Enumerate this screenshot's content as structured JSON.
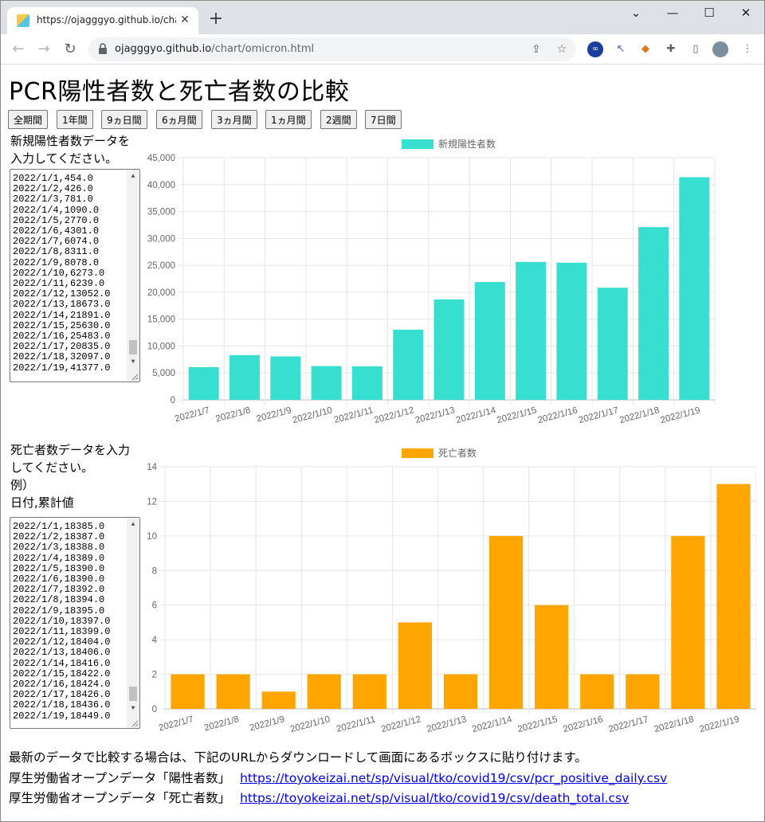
{
  "browser": {
    "tab_title": "https://ojagggyo.github.io/chart/",
    "new_tab_label": "+",
    "url_host": "ojagggyo.github.io",
    "url_path": "/chart/omicron.html",
    "controls": {
      "minimize": "—",
      "maximize": "☐",
      "close": "✕",
      "tabsearch": "⌄"
    }
  },
  "page": {
    "title": "PCR陽性者数と死亡者数の比較",
    "range_buttons": [
      "全期間",
      "1年間",
      "9ヵ日間",
      "6ヵ月間",
      "3ヵ月間",
      "1ヵ月間",
      "2週間",
      "7日間"
    ],
    "positive_label": [
      "新規陽性者数データを",
      "入力してください。"
    ],
    "positive_textarea_lines": [
      "2022/1/1,454.0",
      "2022/1/2,426.0",
      "2022/1/3,781.0",
      "2022/1/4,1090.0",
      "2022/1/5,2770.0",
      "2022/1/6,4301.0",
      "2022/1/7,6074.0",
      "2022/1/8,8311.0",
      "2022/1/9,8078.0",
      "2022/1/10,6273.0",
      "2022/1/11,6239.0",
      "2022/1/12,13052.0",
      "2022/1/13,18673.0",
      "2022/1/14,21891.0",
      "2022/1/15,25630.0",
      "2022/1/16,25483.0",
      "2022/1/17,20835.0",
      "2022/1/18,32097.0",
      "2022/1/19,41377.0"
    ],
    "death_label": [
      "死亡者数データを入力",
      "してください。",
      "例）",
      "日付,累計値"
    ],
    "death_textarea_lines": [
      "2022/1/1,18385.0",
      "2022/1/2,18387.0",
      "2022/1/3,18388.0",
      "2022/1/4,18389.0",
      "2022/1/5,18390.0",
      "2022/1/6,18390.0",
      "2022/1/7,18392.0",
      "2022/1/8,18394.0",
      "2022/1/9,18395.0",
      "2022/1/10,18397.0",
      "2022/1/11,18399.0",
      "2022/1/12,18404.0",
      "2022/1/13,18406.0",
      "2022/1/14,18416.0",
      "2022/1/15,18422.0",
      "2022/1/16,18424.0",
      "2022/1/17,18426.0",
      "2022/1/18,18436.0",
      "2022/1/19,18449.0"
    ],
    "footer": {
      "note": "最新のデータで比較する場合は、下記のURLからダウンロードして画面にあるボックスに貼り付けます。",
      "positive_source_label": "厚生労働省オープンデータ「陽性者数」",
      "positive_source_url": "https://toyokeizai.net/sp/visual/tko/covid19/csv/pcr_positive_daily.csv",
      "death_source_label": "厚生労働省オープンデータ「死亡者数」",
      "death_source_url": "https://toyokeizai.net/sp/visual/tko/covid19/csv/death_total.csv"
    }
  },
  "chart_data": [
    {
      "type": "bar",
      "categories": [
        "2022/1/7",
        "2022/1/8",
        "2022/1/9",
        "2022/1/10",
        "2022/1/11",
        "2022/1/12",
        "2022/1/13",
        "2022/1/14",
        "2022/1/15",
        "2022/1/16",
        "2022/1/17",
        "2022/1/18",
        "2022/1/19"
      ],
      "series": [
        {
          "name": "新規陽性者数",
          "values": [
            6074,
            8311,
            8078,
            6273,
            6239,
            13052,
            18673,
            21891,
            25630,
            25483,
            20835,
            32097,
            41377
          ],
          "color": "#36dfcf"
        }
      ],
      "ylim": [
        0,
        45000
      ],
      "yticks": [
        "0",
        "5,000",
        "10,000",
        "15,000",
        "20,000",
        "25,000",
        "30,000",
        "35,000",
        "40,000",
        "45,000"
      ],
      "legend": "top-center",
      "grid": true
    },
    {
      "type": "bar",
      "categories": [
        "2022/1/7",
        "2022/1/8",
        "2022/1/9",
        "2022/1/10",
        "2022/1/11",
        "2022/1/12",
        "2022/1/13",
        "2022/1/14",
        "2022/1/15",
        "2022/1/16",
        "2022/1/17",
        "2022/1/18",
        "2022/1/19"
      ],
      "series": [
        {
          "name": "死亡者数",
          "values": [
            2,
            2,
            1,
            2,
            2,
            5,
            2,
            10,
            6,
            2,
            2,
            10,
            13
          ],
          "color": "#ffa500"
        }
      ],
      "ylim": [
        0,
        14
      ],
      "yticks": [
        "0",
        "2",
        "4",
        "6",
        "8",
        "10",
        "12",
        "14"
      ],
      "legend": "top-center",
      "grid": true
    }
  ]
}
